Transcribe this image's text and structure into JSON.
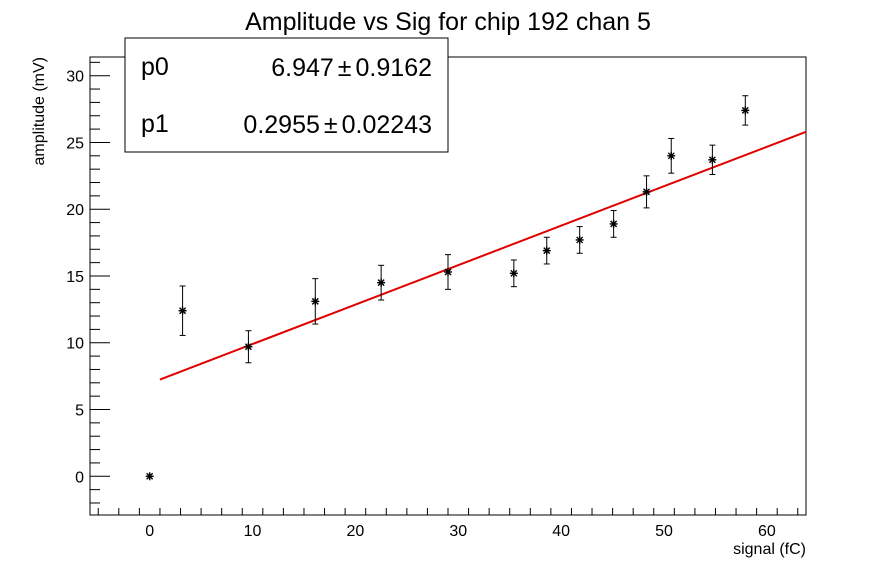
{
  "chart_data": {
    "type": "scatter",
    "title": "Amplitude vs Sig for chip 192 chan 5",
    "xlabel": "signal (fC)",
    "ylabel": "amplitude (mV)",
    "xlim": [
      -5.8,
      63.8
    ],
    "ylim": [
      -2.9,
      31.4
    ],
    "x_ticks": [
      0,
      10,
      20,
      30,
      40,
      50,
      60
    ],
    "y_ticks": [
      0,
      5,
      10,
      15,
      20,
      25,
      30
    ],
    "grid": false,
    "series": [
      {
        "marker": "star",
        "color": "#000000",
        "points": [
          {
            "x": 0.0,
            "y": 0.0,
            "yerr": 0.0
          },
          {
            "x": 3.2,
            "y": 12.4,
            "yerr": 1.85
          },
          {
            "x": 9.6,
            "y": 9.7,
            "yerr": 1.2
          },
          {
            "x": 16.1,
            "y": 13.1,
            "yerr": 1.7
          },
          {
            "x": 22.5,
            "y": 14.5,
            "yerr": 1.3
          },
          {
            "x": 29.0,
            "y": 15.3,
            "yerr": 1.3
          },
          {
            "x": 35.4,
            "y": 15.2,
            "yerr": 1.0
          },
          {
            "x": 38.6,
            "y": 16.9,
            "yerr": 1.0
          },
          {
            "x": 41.8,
            "y": 17.7,
            "yerr": 1.0
          },
          {
            "x": 45.1,
            "y": 18.9,
            "yerr": 1.0
          },
          {
            "x": 48.3,
            "y": 21.3,
            "yerr": 1.2
          },
          {
            "x": 50.7,
            "y": 24.0,
            "yerr": 1.3
          },
          {
            "x": 54.7,
            "y": 23.7,
            "yerr": 1.1
          },
          {
            "x": 57.9,
            "y": 27.4,
            "yerr": 1.1
          }
        ]
      }
    ],
    "fit": {
      "color": "#e00000",
      "p0": 6.947,
      "p1": 0.2955,
      "x_range": [
        1.0,
        63.8
      ]
    },
    "stats_box": {
      "position": "top-left",
      "rows": [
        {
          "name": "p0",
          "value": "6.947",
          "pm": "±",
          "error": "0.9162"
        },
        {
          "name": "p1",
          "value": "0.2955",
          "pm": "±",
          "error": "0.02243"
        }
      ]
    }
  }
}
